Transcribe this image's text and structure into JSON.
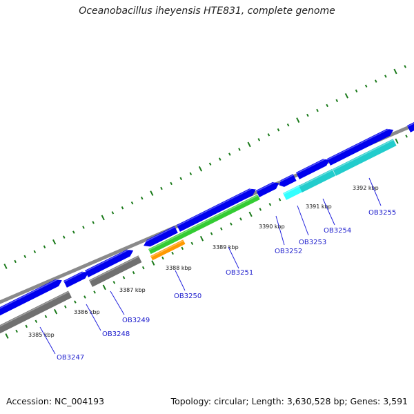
{
  "title": "Oceanobacillus iheyensis HTE831, complete genome",
  "footer": {
    "accession": "Accession: NC_004193",
    "stats": "Topology: circular; Length: 3,630,528 bp; Genes: 3,591"
  },
  "scale_labels": [
    "3385 kbp",
    "3386 kbp",
    "3387 kbp",
    "3388 kbp",
    "3389 kbp",
    "3390 kbp",
    "3391 kbp",
    "3392 kbp"
  ],
  "gene_labels": [
    "OB3247",
    "OB3248",
    "OB3249",
    "OB3250",
    "OB3251",
    "OB3252",
    "OB3253",
    "OB3254",
    "OB3255"
  ],
  "colors": {
    "backbone": "#8a8a8a",
    "forward_cds": "#0000ee",
    "reverse_cds_gray": "#707070",
    "reverse_cds_green": "#33cc33",
    "reverse_cds_orange": "#ff9900",
    "reverse_cds_cyan": "#22cccc",
    "reverse_cds_light_cyan": "#33ffff",
    "ticks": "#1a7a1a",
    "label_line": "#2222dd"
  }
}
